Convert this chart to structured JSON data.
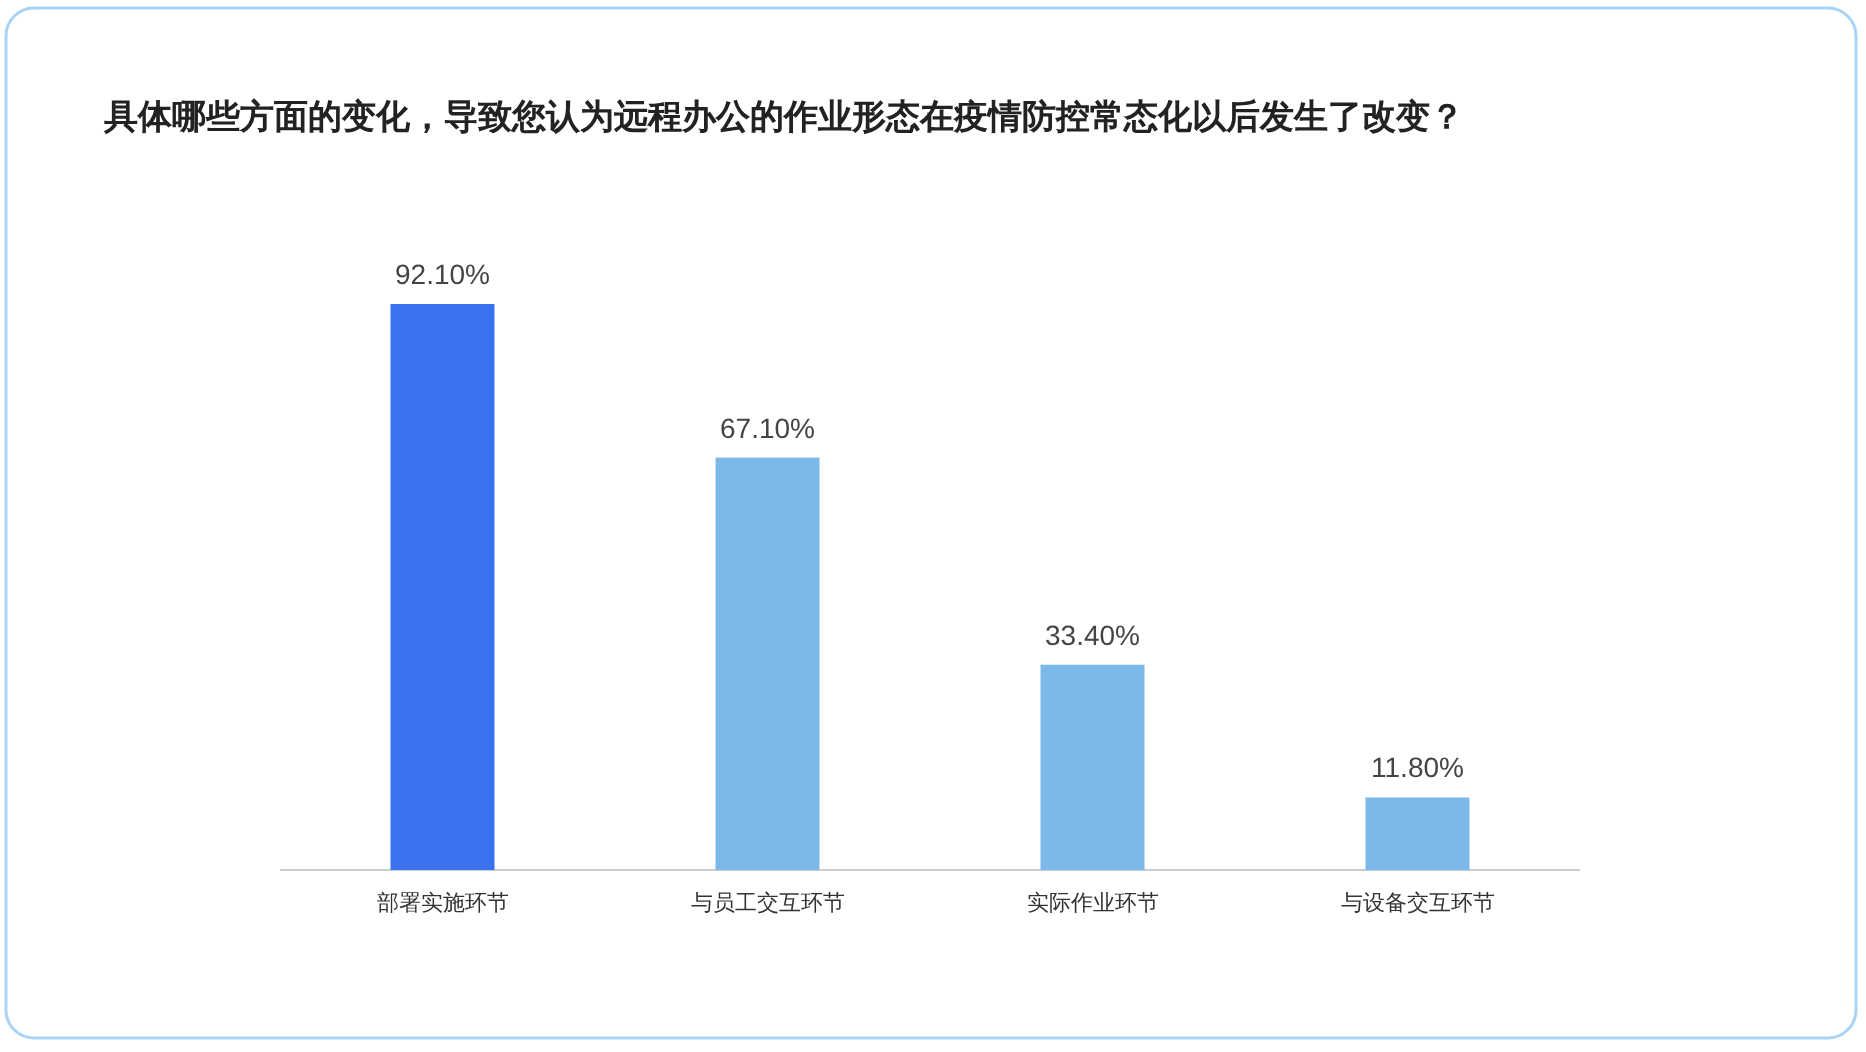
{
  "chart_data": {
    "type": "bar",
    "title": "具体哪些方面的变化，导致您认为远程办公的作业形态在疫情防控常态化以后发生了改变？",
    "categories": [
      "部署实施环节",
      "与员工交互环节",
      "实际作业环节",
      "与设备交互环节"
    ],
    "values": [
      92.1,
      67.1,
      33.4,
      11.8
    ],
    "value_labels": [
      "92.10%",
      "67.10%",
      "33.40%",
      "11.80%"
    ],
    "colors": [
      "#3a72f0",
      "#7db8ea",
      "#7db8ea",
      "#7db8ea"
    ]
  }
}
